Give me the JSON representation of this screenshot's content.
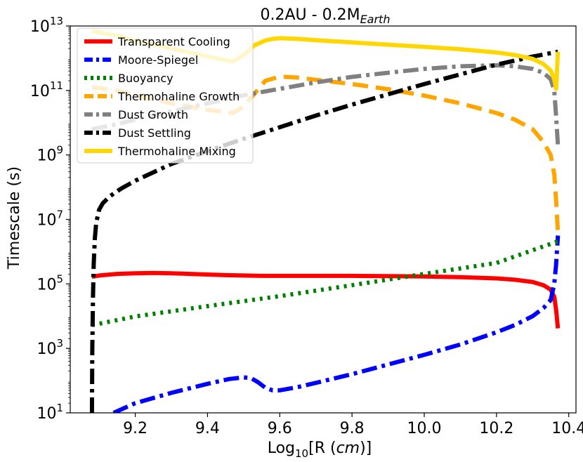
{
  "chart_data": {
    "type": "line",
    "title_main": "0.2AU - 0.2M",
    "title_sub": "Earth",
    "xlabel_main": "Log",
    "xlabel_sub": "10",
    "xlabel_rest": "[R (",
    "xlabel_italic": "cm",
    "xlabel_end": ")]",
    "ylabel": "Timescale (s)",
    "xlim": [
      9.02,
      10.42
    ],
    "ylim_log10": [
      1,
      13
    ],
    "xticks": [
      {
        "value": 9.2,
        "label": "9.2"
      },
      {
        "value": 9.4,
        "label": "9.4"
      },
      {
        "value": 9.6,
        "label": "9.6"
      },
      {
        "value": 9.8,
        "label": "9.8"
      },
      {
        "value": 10.0,
        "label": "10.0"
      },
      {
        "value": 10.2,
        "label": "10.2"
      },
      {
        "value": 10.4,
        "label": "10.4"
      }
    ],
    "yticks": [
      {
        "value": 1,
        "base": "10",
        "exp": "1"
      },
      {
        "value": 3,
        "base": "10",
        "exp": "3"
      },
      {
        "value": 5,
        "base": "10",
        "exp": "5"
      },
      {
        "value": 7,
        "base": "10",
        "exp": "7"
      },
      {
        "value": 9,
        "base": "10",
        "exp": "9"
      },
      {
        "value": 11,
        "base": "10",
        "exp": "11"
      },
      {
        "value": 13,
        "base": "10",
        "exp": "13"
      }
    ],
    "legend_position": "upper-left",
    "series": [
      {
        "name": "Transparent Cooling",
        "color": "#ff0000",
        "dash": "solid",
        "x": [
          9.08,
          9.1,
          9.15,
          9.2,
          9.25,
          9.3,
          9.35,
          9.4,
          9.45,
          9.5,
          9.55,
          9.6,
          9.7,
          9.8,
          9.9,
          10.0,
          10.1,
          10.2,
          10.25,
          10.3,
          10.33,
          10.35,
          10.36,
          10.365,
          10.37
        ],
        "y": [
          5.22,
          5.26,
          5.31,
          5.33,
          5.34,
          5.33,
          5.31,
          5.29,
          5.27,
          5.26,
          5.25,
          5.25,
          5.25,
          5.25,
          5.24,
          5.23,
          5.21,
          5.17,
          5.13,
          5.06,
          4.96,
          4.82,
          4.6,
          4.2,
          3.62
        ]
      },
      {
        "name": "Moore-Spiegel",
        "color": "#0000ff",
        "dash": "dashdot",
        "x": [
          9.14,
          9.2,
          9.3,
          9.4,
          9.46,
          9.5,
          9.52,
          9.54,
          9.56,
          9.58,
          9.6,
          9.65,
          9.7,
          9.8,
          9.9,
          10.0,
          10.1,
          10.2,
          10.25,
          10.3,
          10.33,
          10.35,
          10.36,
          10.365,
          10.37
        ],
        "y": [
          1.0,
          1.3,
          1.62,
          1.9,
          2.05,
          2.1,
          2.08,
          1.95,
          1.78,
          1.7,
          1.7,
          1.8,
          1.93,
          2.2,
          2.5,
          2.8,
          3.12,
          3.5,
          3.72,
          4.0,
          4.25,
          4.5,
          5.0,
          5.6,
          6.5
        ]
      },
      {
        "name": "Buoyancy",
        "color": "#008000",
        "dash": "dotted",
        "x": [
          9.08,
          9.2,
          9.4,
          9.6,
          9.8,
          10.0,
          10.2,
          10.37
        ],
        "y": [
          3.72,
          3.99,
          4.31,
          4.62,
          4.96,
          5.31,
          5.65,
          6.32
        ]
      },
      {
        "name": "Thermohaline Growth",
        "color": "#ffa500",
        "dash": "dashed",
        "x": [
          9.08,
          9.15,
          9.2,
          9.3,
          9.4,
          9.47,
          9.5,
          9.53,
          9.56,
          9.6,
          9.65,
          9.7,
          9.8,
          9.9,
          10.0,
          10.1,
          10.2,
          10.25,
          10.3,
          10.33,
          10.35,
          10.36,
          10.365,
          10.37
        ],
        "y": [
          11.1,
          11.0,
          10.85,
          10.6,
          10.4,
          10.3,
          10.5,
          10.9,
          11.3,
          11.43,
          11.4,
          11.33,
          11.2,
          11.04,
          10.84,
          10.6,
          10.3,
          10.1,
          9.8,
          9.4,
          9.0,
          8.4,
          7.6,
          6.6
        ]
      },
      {
        "name": "Dust Growth",
        "color": "#808080",
        "dash": "dashdot",
        "x": [
          9.08,
          9.15,
          9.2,
          9.3,
          9.4,
          9.5,
          9.6,
          9.7,
          9.8,
          9.9,
          10.0,
          10.1,
          10.2,
          10.25,
          10.3,
          10.33,
          10.35,
          10.36,
          10.365,
          10.37
        ],
        "y": [
          9.8,
          9.95,
          10.1,
          10.35,
          10.6,
          10.85,
          11.05,
          11.25,
          11.42,
          11.55,
          11.67,
          11.75,
          11.78,
          11.75,
          11.67,
          11.55,
          11.35,
          11.0,
          10.2,
          9.3
        ]
      },
      {
        "name": "Dust Settling",
        "color": "#000000",
        "dash": "dashdot",
        "x": [
          9.08,
          9.081,
          9.083,
          9.085,
          9.088,
          9.092,
          9.1,
          9.11,
          9.13,
          9.16,
          9.2,
          9.3,
          9.4,
          9.5,
          9.6,
          9.7,
          9.8,
          9.9,
          10.0,
          10.1,
          10.2,
          10.3,
          10.37
        ],
        "y": [
          1.0,
          3.0,
          4.6,
          5.6,
          6.4,
          6.9,
          7.3,
          7.5,
          7.72,
          7.95,
          8.2,
          8.72,
          9.12,
          9.5,
          9.86,
          10.22,
          10.56,
          10.88,
          11.2,
          11.5,
          11.8,
          12.05,
          12.2
        ]
      },
      {
        "name": "Thermohaline Mixing",
        "color": "#ffd700",
        "dash": "solid",
        "x": [
          9.08,
          9.15,
          9.2,
          9.3,
          9.4,
          9.47,
          9.5,
          9.53,
          9.56,
          9.58,
          9.6,
          9.65,
          9.7,
          9.8,
          9.9,
          10.0,
          10.1,
          10.2,
          10.25,
          10.3,
          10.33,
          10.35,
          10.36,
          10.365,
          10.37
        ],
        "y": [
          12.85,
          12.7,
          12.55,
          12.3,
          12.05,
          11.9,
          12.1,
          12.4,
          12.55,
          12.6,
          12.62,
          12.6,
          12.56,
          12.49,
          12.42,
          12.35,
          12.28,
          12.18,
          12.1,
          11.98,
          11.82,
          11.62,
          11.35,
          11.05,
          12.2
        ]
      }
    ]
  }
}
